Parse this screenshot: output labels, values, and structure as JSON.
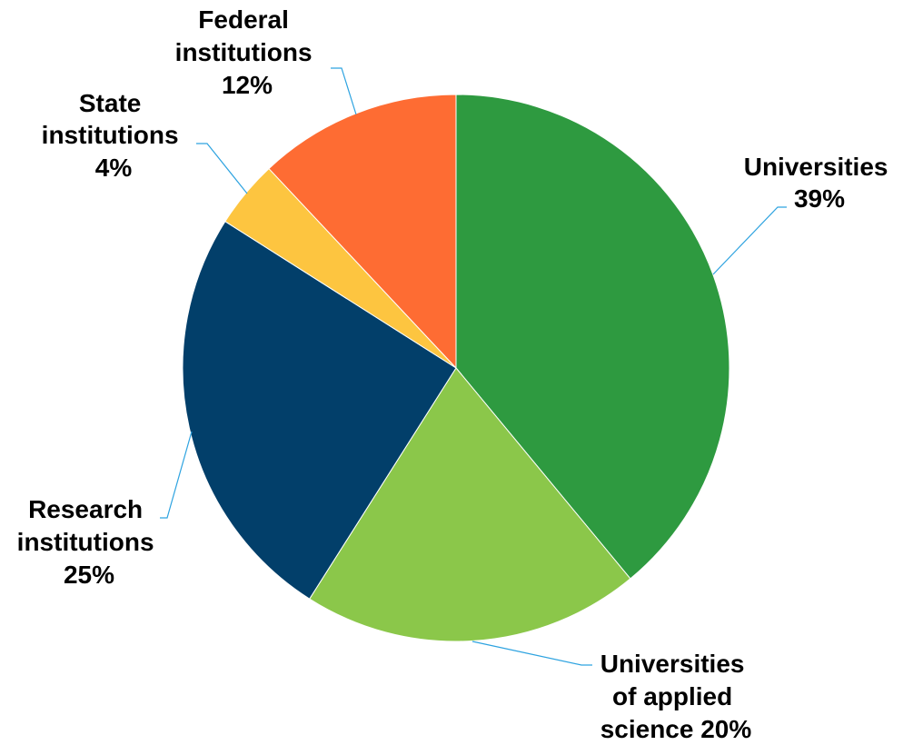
{
  "chart_data": {
    "type": "pie",
    "title": "",
    "slices": [
      {
        "name": "Universities",
        "value": 39,
        "color": "#2e9a40",
        "label_lines": [
          "Universities",
          "39%"
        ]
      },
      {
        "name": "Universities of applied science",
        "value": 20,
        "color": "#8bc74a",
        "label_lines": [
          "Universities",
          "of applied",
          "science 20%"
        ]
      },
      {
        "name": "Research institutions",
        "value": 25,
        "color": "#023f6a",
        "label_lines": [
          "Research",
          "institutions",
          "25%"
        ]
      },
      {
        "name": "State institutions",
        "value": 4,
        "color": "#fdc540",
        "label_lines": [
          "State",
          "institutions",
          "4%"
        ]
      },
      {
        "name": "Federal institutions",
        "value": 12,
        "color": "#fe6c33",
        "label_lines": [
          "Federal",
          "institutions",
          "12%"
        ]
      }
    ],
    "start_angle": "top",
    "direction": "clockwise",
    "legend": "none",
    "data_labels": "outside with leader lines"
  }
}
